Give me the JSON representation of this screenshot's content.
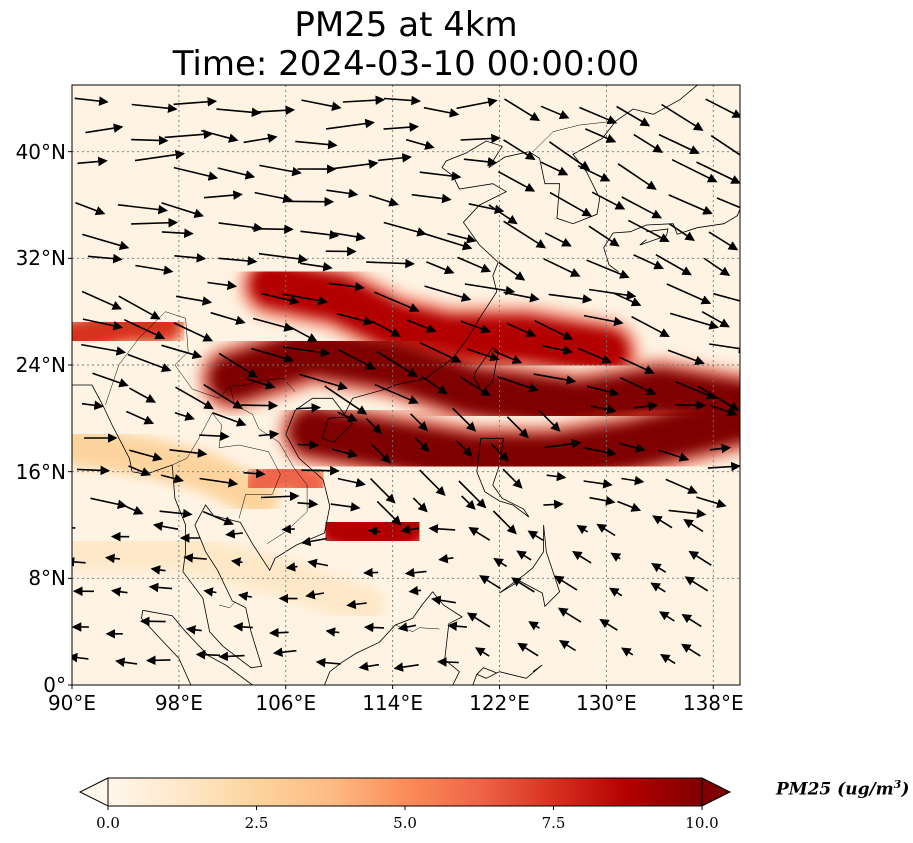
{
  "title": {
    "line1": "PM25 at 4km",
    "line2": "Time: 2024-03-10 00:00:00"
  },
  "map": {
    "region": "East and Southeast Asia",
    "lon_range": [
      90,
      140
    ],
    "lat_range": [
      0,
      45
    ],
    "lon_ticks": [
      {
        "value": 90,
        "label": "90°E"
      },
      {
        "value": 98,
        "label": "98°E"
      },
      {
        "value": 106,
        "label": "106°E"
      },
      {
        "value": 114,
        "label": "114°E"
      },
      {
        "value": 122,
        "label": "122°E"
      },
      {
        "value": 130,
        "label": "130°E"
      },
      {
        "value": 138,
        "label": "138°E"
      }
    ],
    "lat_ticks": [
      {
        "value": 0,
        "label": "0°"
      },
      {
        "value": 8,
        "label": "8°N"
      },
      {
        "value": 16,
        "label": "16°N"
      },
      {
        "value": 24,
        "label": "24°N"
      },
      {
        "value": 32,
        "label": "32°N"
      },
      {
        "value": 40,
        "label": "40°N"
      }
    ],
    "gridlines": true,
    "field": "PM25 concentration, 4 km level",
    "wind_vectors": true
  },
  "colorbar": {
    "label": "PM25 (ug/m",
    "label_sup": "3",
    "label_close": ")",
    "ticks": [
      "0.0",
      "2.5",
      "5.0",
      "7.5",
      "10.0"
    ],
    "tick_values": [
      0,
      2.5,
      5,
      7.5,
      10
    ],
    "range": [
      0,
      10
    ],
    "extend": "both",
    "colormap": "OrRd",
    "colors": [
      "#fff7ec",
      "#fee8c8",
      "#fdd49e",
      "#fdbb84",
      "#fc8d59",
      "#ef6548",
      "#d7301f",
      "#b30000",
      "#7f0000"
    ]
  },
  "pollution_plumes": [
    {
      "name": "main band",
      "path": [
        [
          102,
          23
        ],
        [
          108,
          25
        ],
        [
          114,
          24
        ],
        [
          120,
          22
        ],
        [
          128,
          21
        ],
        [
          134,
          22
        ],
        [
          140,
          21
        ]
      ],
      "level": 10
    },
    {
      "name": "south china sea band",
      "path": [
        [
          108,
          19
        ],
        [
          114,
          18
        ],
        [
          120,
          17
        ],
        [
          126,
          17
        ],
        [
          132,
          18
        ],
        [
          140,
          20
        ]
      ],
      "level": 10
    },
    {
      "name": "sichuan plume",
      "path": [
        [
          105,
          30
        ],
        [
          110,
          29
        ],
        [
          114,
          27
        ],
        [
          118,
          26
        ],
        [
          124,
          26
        ],
        [
          130,
          25
        ]
      ],
      "level": 9
    },
    {
      "name": "borneo north",
      "path": [
        [
          110,
          12
        ],
        [
          113,
          11
        ],
        [
          115,
          12
        ]
      ],
      "level": 9
    },
    {
      "name": "myanmar patch",
      "path": [
        [
          90,
          26
        ],
        [
          94,
          27
        ],
        [
          97,
          27
        ]
      ],
      "level": 7
    },
    {
      "name": "indochina haze",
      "path": [
        [
          104,
          15
        ],
        [
          106,
          16
        ],
        [
          108,
          15
        ]
      ],
      "level": 6
    },
    {
      "name": "bay of bengal haze",
      "path": [
        [
          90,
          18
        ],
        [
          96,
          17
        ],
        [
          100,
          16
        ],
        [
          104,
          14
        ]
      ],
      "level": 2
    },
    {
      "name": "tropical haze",
      "path": [
        [
          90,
          10
        ],
        [
          98,
          10
        ],
        [
          106,
          8
        ],
        [
          112,
          6
        ]
      ],
      "level": 1
    }
  ]
}
